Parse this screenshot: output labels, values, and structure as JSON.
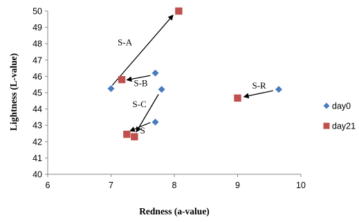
{
  "chart_data": {
    "type": "scatter",
    "title": "",
    "xlabel": "Redness (a-value)",
    "ylabel": "Lightness (L-value)",
    "xlim": [
      6,
      10
    ],
    "ylim": [
      40,
      50
    ],
    "xticks": [
      6,
      7,
      8,
      9,
      10
    ],
    "yticks": [
      40,
      41,
      42,
      43,
      44,
      45,
      46,
      47,
      48,
      49,
      50
    ],
    "grid": false,
    "legend_position": "right",
    "series": [
      {
        "name": "day0",
        "marker": "diamond",
        "color": "#4a7bbf",
        "points": [
          {
            "x": 7.0,
            "y": 45.25
          },
          {
            "x": 7.7,
            "y": 46.2
          },
          {
            "x": 7.8,
            "y": 45.2
          },
          {
            "x": 7.7,
            "y": 43.2
          },
          {
            "x": 9.65,
            "y": 45.2
          }
        ]
      },
      {
        "name": "day21",
        "marker": "square",
        "color": "#c0504d",
        "points": [
          {
            "x": 8.07,
            "y": 50.0
          },
          {
            "x": 7.17,
            "y": 45.8
          },
          {
            "x": 7.25,
            "y": 42.45
          },
          {
            "x": 7.37,
            "y": 42.3
          },
          {
            "x": 9.0,
            "y": 44.67
          }
        ]
      }
    ],
    "arrows": [
      {
        "from": [
          7.02,
          45.45
        ],
        "to": [
          7.98,
          49.75
        ]
      },
      {
        "from": [
          7.62,
          46.05
        ],
        "to": [
          7.25,
          45.78
        ]
      },
      {
        "from": [
          7.75,
          44.9
        ],
        "to": [
          7.4,
          42.6
        ]
      },
      {
        "from": [
          7.62,
          43.17
        ],
        "to": [
          7.3,
          42.65
        ]
      },
      {
        "from": [
          9.56,
          45.12
        ],
        "to": [
          9.1,
          44.75
        ]
      }
    ],
    "annotations": [
      {
        "text": "S-A",
        "x": 7.22,
        "y": 47.9
      },
      {
        "text": "S-B",
        "x": 7.47,
        "y": 45.4
      },
      {
        "text": "S-C",
        "x": 7.45,
        "y": 44.1
      },
      {
        "text": "S",
        "x": 7.5,
        "y": 42.5
      },
      {
        "text": "S-R",
        "x": 9.34,
        "y": 45.25
      }
    ]
  }
}
